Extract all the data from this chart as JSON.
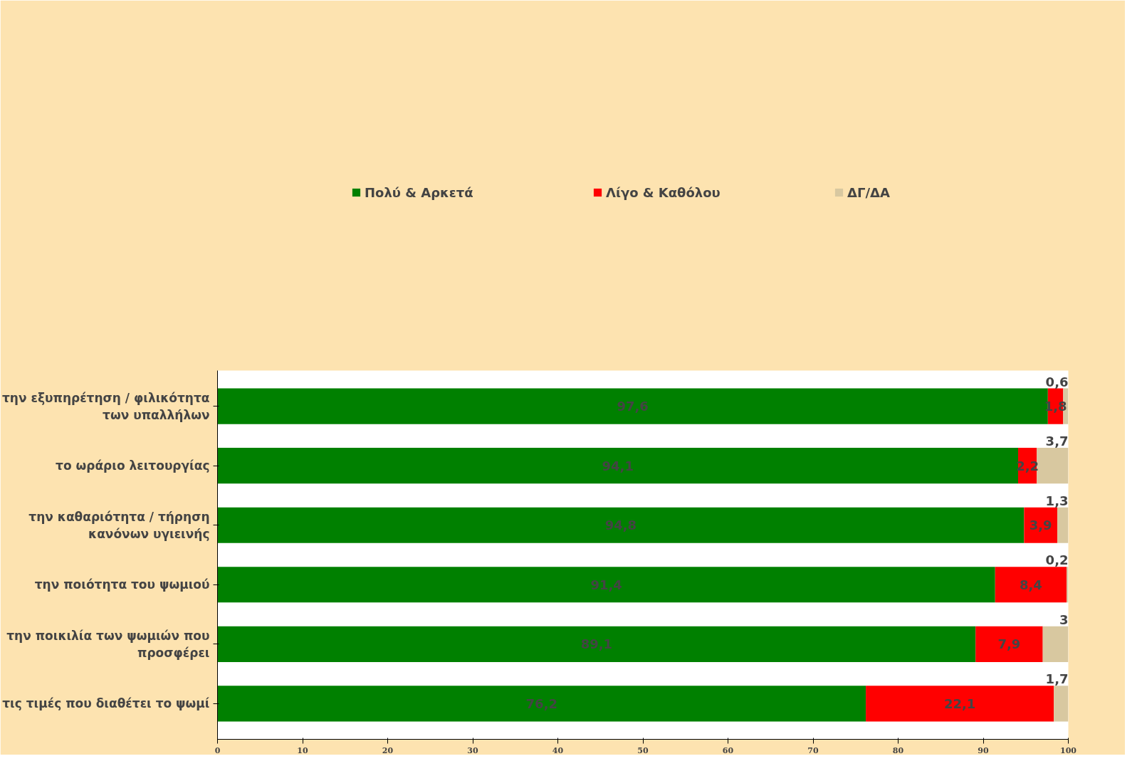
{
  "chart_data": {
    "type": "bar",
    "orientation": "horizontal",
    "stacked": true,
    "categories": [
      "την εξυπηρέτηση / φιλικότητα των υπαλλήλων",
      "το ωράριο λειτουργίας",
      "την καθαριότητα / τήρηση κανόνων υγιεινής",
      "την ποιότητα του ψωμιού",
      "την ποικιλία των ψωμιών που προσφέρει",
      "τις τιμές που διαθέτει το ψωμί"
    ],
    "series": [
      {
        "name": "Πολύ & Αρκετά",
        "color": "#008000",
        "values": [
          97.6,
          94.1,
          94.8,
          91.4,
          89.1,
          76.2
        ],
        "value_labels": [
          "97,6",
          "94,1",
          "94,8",
          "91,4",
          "89,1",
          "76,2"
        ]
      },
      {
        "name": "Λίγο & Καθόλου",
        "color": "#ff0000",
        "values": [
          1.8,
          2.2,
          3.9,
          8.4,
          7.9,
          22.1
        ],
        "value_labels": [
          "1,8",
          "2,2",
          "3,9",
          "8,4",
          "7,9",
          "22,1"
        ]
      },
      {
        "name": "ΔΓ/ΔΑ",
        "color": "#d8c8a0",
        "values": [
          0.6,
          3.7,
          1.3,
          0.2,
          3,
          1.7
        ],
        "value_labels": [
          "0,6",
          "3,7",
          "1,3",
          "0,2",
          "3",
          "1,7"
        ]
      }
    ],
    "xlim": [
      0,
      100
    ],
    "xticks": [
      0,
      10,
      20,
      30,
      40,
      50,
      60,
      70,
      80,
      90,
      100
    ],
    "legend": "top",
    "grid": false
  }
}
